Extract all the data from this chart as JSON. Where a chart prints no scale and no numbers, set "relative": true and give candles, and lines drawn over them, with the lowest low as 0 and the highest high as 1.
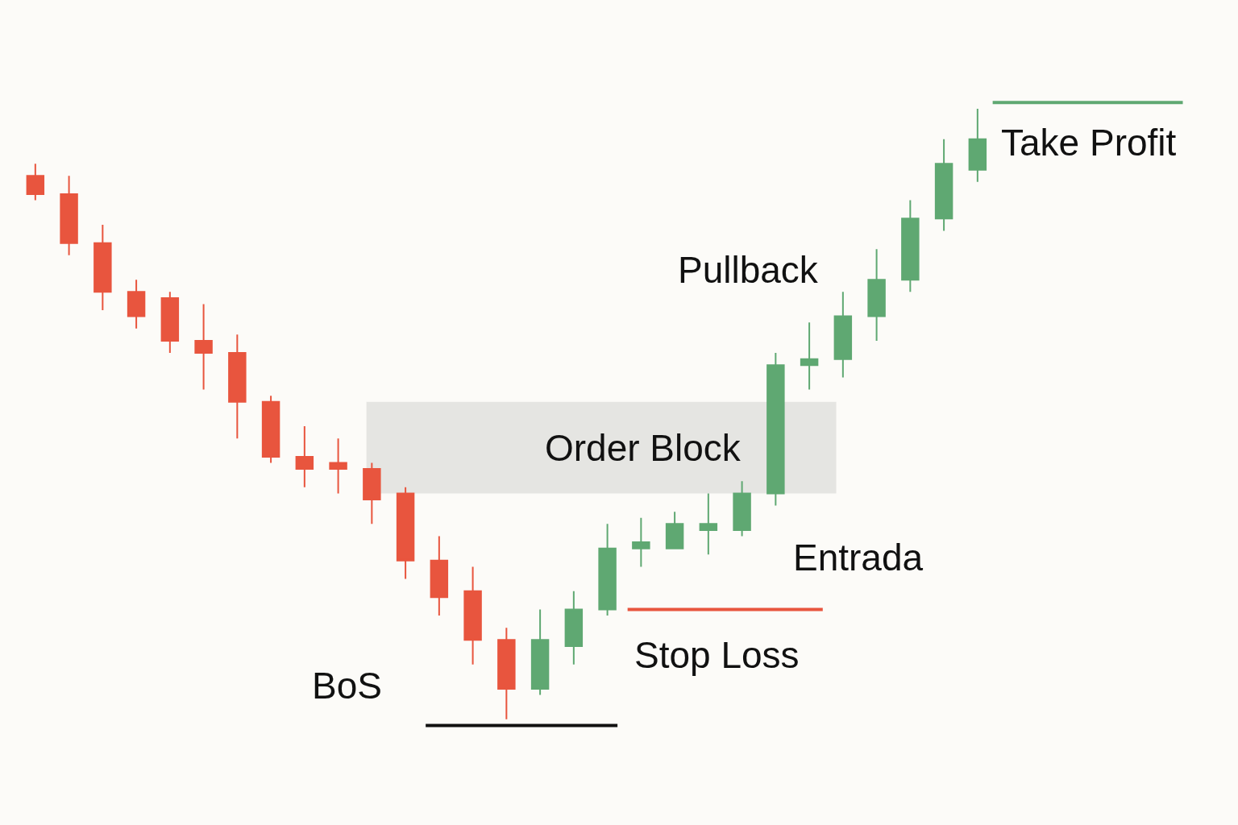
{
  "chart_data": {
    "type": "candlestick",
    "relative": true,
    "categories": [
      null,
      null,
      null,
      null,
      null,
      null,
      null,
      null,
      null,
      null,
      null,
      null,
      null,
      null,
      null,
      null,
      null,
      null,
      null,
      null,
      null,
      null,
      null,
      null,
      null,
      null,
      null,
      null,
      null
    ],
    "ohlc": [
      [
        0.89,
        0.91,
        0.85,
        0.86
      ],
      [
        0.86,
        0.89,
        0.76,
        0.78
      ],
      [
        0.78,
        0.81,
        0.67,
        0.7
      ],
      [
        0.7,
        0.72,
        0.64,
        0.66
      ],
      [
        0.69,
        0.7,
        0.6,
        0.62
      ],
      [
        0.62,
        0.68,
        0.54,
        0.6
      ],
      [
        0.6,
        0.63,
        0.46,
        0.52
      ],
      [
        0.52,
        0.53,
        0.42,
        0.43
      ],
      [
        0.43,
        0.48,
        0.38,
        0.41
      ],
      [
        0.42,
        0.46,
        0.37,
        0.41
      ],
      [
        0.41,
        0.42,
        0.32,
        0.36
      ],
      [
        0.37,
        0.38,
        0.23,
        0.26
      ],
      [
        0.26,
        0.3,
        0.17,
        0.2
      ],
      [
        0.21,
        0.25,
        0.09,
        0.13
      ],
      [
        0.13,
        0.15,
        0.0,
        0.05
      ],
      [
        0.05,
        0.18,
        0.04,
        0.13
      ],
      [
        0.12,
        0.21,
        0.09,
        0.18
      ],
      [
        0.18,
        0.32,
        0.17,
        0.28
      ],
      [
        0.28,
        0.33,
        0.25,
        0.29
      ],
      [
        0.28,
        0.34,
        0.28,
        0.32
      ],
      [
        0.31,
        0.37,
        0.27,
        0.32
      ],
      [
        0.31,
        0.39,
        0.3,
        0.37
      ],
      [
        0.37,
        0.6,
        0.35,
        0.58
      ],
      [
        0.58,
        0.65,
        0.54,
        0.59
      ],
      [
        0.59,
        0.7,
        0.56,
        0.66
      ],
      [
        0.66,
        0.77,
        0.62,
        0.72
      ],
      [
        0.72,
        0.85,
        0.7,
        0.82
      ],
      [
        0.82,
        0.95,
        0.8,
        0.91
      ],
      [
        0.9,
        1.0,
        0.88,
        0.95
      ]
    ],
    "colors": [
      "#e8553e",
      "#e8553e",
      "#e8553e",
      "#e8553e",
      "#e8553e",
      "#e8553e",
      "#e8553e",
      "#e8553e",
      "#e8553e",
      "#e8553e",
      "#e8553e",
      "#e8553e",
      "#e8553e",
      "#e8553e",
      "#e8553e",
      "#5fa872",
      "#5fa872",
      "#5fa872",
      "#5fa872",
      "#5fa872",
      "#5fa872",
      "#5fa872",
      "#5fa872",
      "#5fa872",
      "#5fa872",
      "#5fa872",
      "#5fa872",
      "#5fa872",
      "#5fa872"
    ],
    "ref_lines": [
      {
        "axis": "y",
        "value": 1.01,
        "label": "Take Profit",
        "color": "#5fa872"
      },
      {
        "axis": "y",
        "value": 0.18,
        "label": "Stop Loss",
        "color": "#e8553e"
      },
      {
        "axis": "y",
        "value": -0.01,
        "label": "BoS",
        "color": "#111111"
      }
    ],
    "bands": [
      {
        "axis": "y",
        "from": 0.37,
        "to": 0.52,
        "label": "Order Block",
        "color": "#e5e5e2"
      }
    ],
    "annotations": [
      "Pullback",
      "Entrada"
    ]
  }
}
